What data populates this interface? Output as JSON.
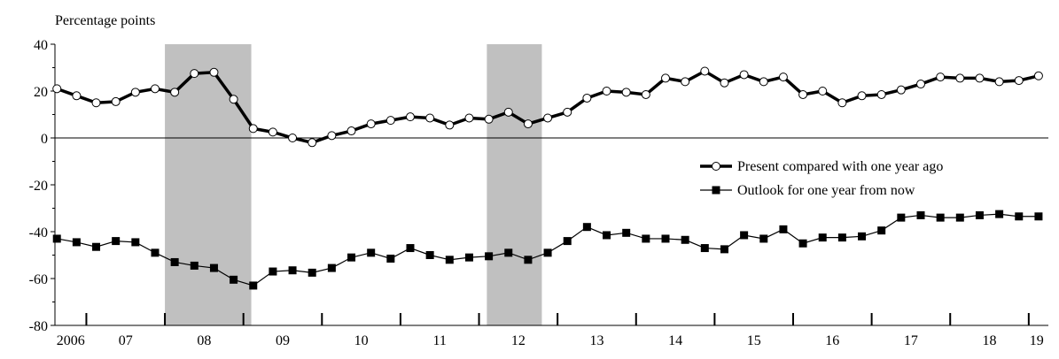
{
  "chart_data": {
    "type": "line",
    "ylabel": "Percentage points",
    "ylim": [
      -80,
      40
    ],
    "yticks": [
      -80,
      -60,
      -40,
      -20,
      0,
      20,
      40
    ],
    "xlim": [
      2006.6,
      2019.25
    ],
    "xticks": [
      2007,
      2008,
      2009,
      2010,
      2011,
      2012,
      2013,
      2014,
      2015,
      2016,
      2017,
      2018,
      2019
    ],
    "xticklabels": [
      {
        "value": 2006.8,
        "label": "2006"
      },
      {
        "value": 2007.5,
        "label": "07"
      },
      {
        "value": 2008.5,
        "label": "08"
      },
      {
        "value": 2009.5,
        "label": "09"
      },
      {
        "value": 2010.5,
        "label": "10"
      },
      {
        "value": 2011.5,
        "label": "11"
      },
      {
        "value": 2012.5,
        "label": "12"
      },
      {
        "value": 2013.5,
        "label": "13"
      },
      {
        "value": 2014.5,
        "label": "14"
      },
      {
        "value": 2015.5,
        "label": "15"
      },
      {
        "value": 2016.5,
        "label": "16"
      },
      {
        "value": 2017.5,
        "label": "17"
      },
      {
        "value": 2018.5,
        "label": "18"
      },
      {
        "value": 2019.1,
        "label": "19"
      }
    ],
    "shaded": [
      [
        2008.0,
        2009.1
      ],
      [
        2012.1,
        2012.8
      ]
    ],
    "shade_color": "#c0c0c0",
    "zero_line": true,
    "legend": "right",
    "x": [
      2006.625,
      2006.875,
      2007.125,
      2007.375,
      2007.625,
      2007.875,
      2008.125,
      2008.375,
      2008.625,
      2008.875,
      2009.125,
      2009.375,
      2009.625,
      2009.875,
      2010.125,
      2010.375,
      2010.625,
      2010.875,
      2011.125,
      2011.375,
      2011.625,
      2011.875,
      2012.125,
      2012.375,
      2012.625,
      2012.875,
      2013.125,
      2013.375,
      2013.625,
      2013.875,
      2014.125,
      2014.375,
      2014.625,
      2014.875,
      2015.125,
      2015.375,
      2015.625,
      2015.875,
      2016.125,
      2016.375,
      2016.625,
      2016.875,
      2017.125,
      2017.375,
      2017.625,
      2017.875,
      2018.125,
      2018.375,
      2018.625,
      2018.875,
      2019.125
    ],
    "series": [
      {
        "name": "Present compared with one year ago",
        "color": "#000000",
        "marker": "circle",
        "values": [
          21,
          18,
          15,
          15.5,
          19.5,
          21,
          19.5,
          27.5,
          28,
          16.5,
          4,
          2.5,
          0,
          -2,
          1,
          3,
          6,
          7.5,
          9,
          8.5,
          5.5,
          8.5,
          8,
          11,
          6,
          8.5,
          11,
          17,
          20,
          19.5,
          18.5,
          25.5,
          24,
          28.5,
          23.5,
          27,
          24,
          26,
          18.5,
          20,
          15,
          18,
          18.5,
          20.5,
          23,
          26,
          25.5,
          25.5,
          24,
          24.5,
          26.5
        ]
      },
      {
        "name": "Outlook for one year from now",
        "color": "#000000",
        "marker": "square",
        "values": [
          -43,
          -44.5,
          -46.5,
          -44,
          -44.5,
          -49,
          -53,
          -54.5,
          -55.5,
          -60.5,
          -63,
          -57,
          -56.5,
          -57.5,
          -55.5,
          -51,
          -49,
          -51.5,
          -47,
          -50,
          -52,
          -51,
          -50.5,
          -49,
          -52,
          -49,
          -44,
          -38,
          -41.5,
          -40.5,
          -43,
          -43,
          -43.5,
          -47,
          -47.5,
          -41.5,
          -43,
          -39,
          -45,
          -42.5,
          -42.5,
          -42,
          -39.5,
          -34,
          -33,
          -34,
          -34,
          -33,
          -32.5,
          -33.5,
          -33.5
        ]
      }
    ]
  }
}
